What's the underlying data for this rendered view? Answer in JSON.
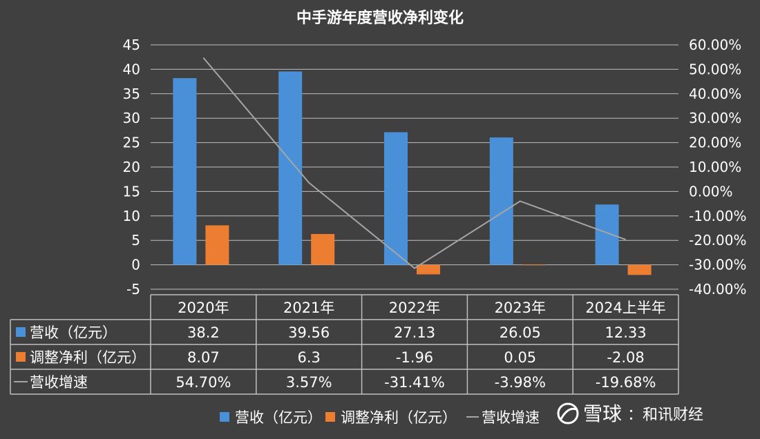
{
  "chart_data": {
    "type": "bar",
    "title": "中手游年度营收净利变化",
    "categories": [
      "2020年",
      "2021年",
      "2022年",
      "2023年",
      "2024上半年"
    ],
    "series": [
      {
        "name": "营收（亿元）",
        "legend_label": "营收（亿元）",
        "type": "bar",
        "axis": "left",
        "color": "#4a90d9",
        "values": [
          38.2,
          39.56,
          27.13,
          26.05,
          12.33
        ],
        "display": [
          "38.2",
          "39.56",
          "27.13",
          "26.05",
          "12.33"
        ]
      },
      {
        "name": "调整净利（亿元）",
        "legend_label": "调整净利（亿元）",
        "type": "bar",
        "axis": "left",
        "color": "#ed7d31",
        "values": [
          8.07,
          6.3,
          -1.96,
          0.05,
          -2.08
        ],
        "display": [
          "8.07",
          "6.3",
          "-1.96",
          "0.05",
          "-2.08"
        ]
      },
      {
        "name": "营收增速",
        "legend_label": "营收增速",
        "type": "line",
        "axis": "right",
        "color": "#a5a5a5",
        "values": [
          54.7,
          3.57,
          -31.41,
          -3.98,
          -19.68
        ],
        "display": [
          "54.70%",
          "3.57%",
          "-31.41%",
          "-3.98%",
          "-19.68%"
        ]
      }
    ],
    "y_left": {
      "min": -5,
      "max": 45,
      "step": 5,
      "ticks": [
        "-5",
        "0",
        "5",
        "10",
        "15",
        "20",
        "25",
        "30",
        "35",
        "40",
        "45"
      ]
    },
    "y_right": {
      "min": -40,
      "max": 60,
      "step": 10,
      "ticks": [
        "-40.00%",
        "-30.00%",
        "-20.00%",
        "-10.00%",
        "0.00%",
        "10.00%",
        "20.00%",
        "30.00%",
        "40.00%",
        "50.00%",
        "60.00%"
      ]
    },
    "grid": true,
    "legend_position": "bottom"
  },
  "watermark": {
    "text": "雪球",
    "suffix": "：和讯财经"
  },
  "colors": {
    "background": "#404040",
    "grid": "#bfbfbf",
    "text": "#ffffff"
  }
}
